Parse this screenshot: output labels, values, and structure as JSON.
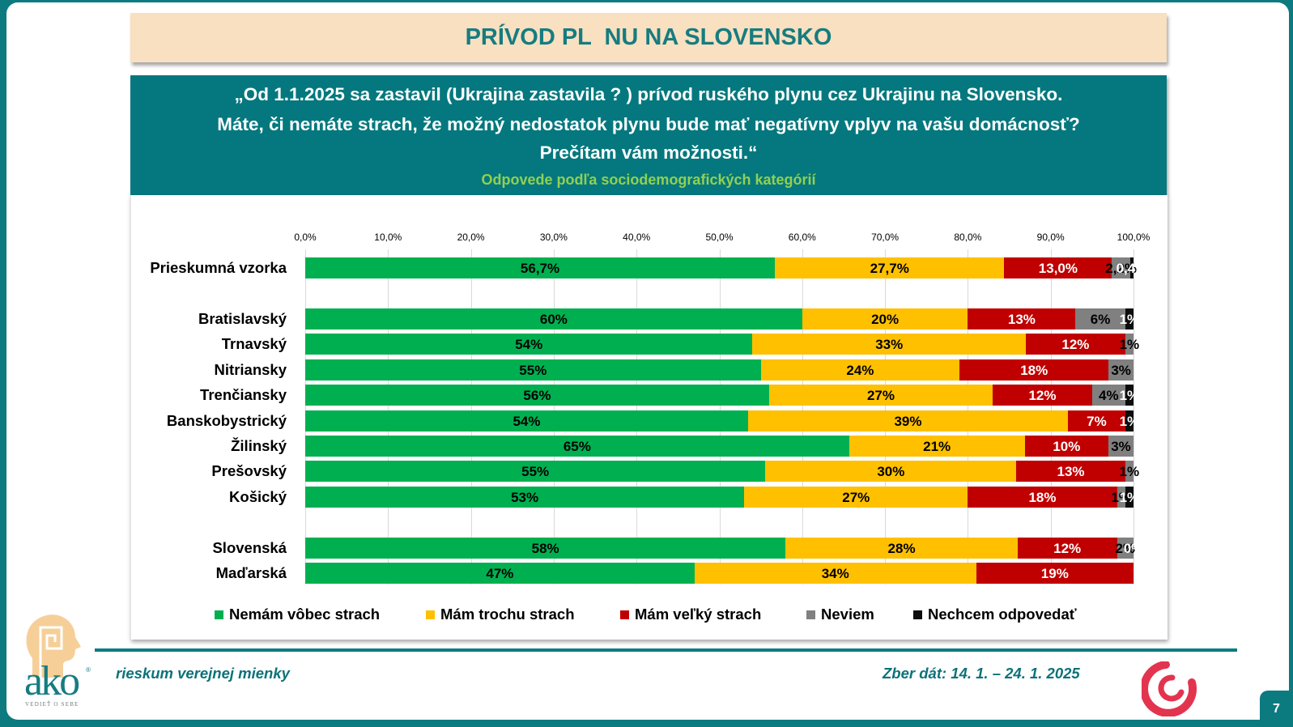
{
  "slide": {
    "title": "PRÍVOD PL  NU NA SLOVENSKO",
    "question_lines": [
      "„Od 1.1.2025 sa zastavil (Ukrajina zastavila ? ) prívod ruského plynu cez Ukrajinu na Slovensko.",
      "Máte, či nemáte strach, že možný nedostatok plynu bude mať negatívny vplyv na vašu domácnosť?",
      "Prečítam vám možnosti.“"
    ],
    "subtitle": "Odpovede podľa sociodemografických kategórií",
    "footer_left": "rieskum verejnej mienky",
    "footer_date": "Zber dát: 14. 1. – 24. 1. 2025",
    "page_number": "7",
    "logo": {
      "name": "ako",
      "registered_mark": "®",
      "tagline": "VEDIEŤ O SEBE"
    },
    "icons": {
      "left_logo": "ako-head-logo",
      "right_logo": "red-swirl-logo"
    }
  },
  "colors": {
    "frame_teal": "#0b7b80",
    "title_band": "#f8e0c0",
    "question_box": "#04787e",
    "subtitle_green": "#92d050"
  },
  "chart_data": {
    "type": "bar",
    "orientation": "horizontal",
    "stacked": "100%",
    "title": "",
    "xlabel": "",
    "ylabel": "",
    "xlim": [
      0,
      100
    ],
    "grid": true,
    "legend_position": "bottom",
    "x_ticks": [
      "0,0%",
      "10,0%",
      "20,0%",
      "30,0%",
      "40,0%",
      "50,0%",
      "60,0%",
      "70,0%",
      "80,0%",
      "90,0%",
      "100,0%"
    ],
    "categories": [
      "Prieskumná vzorka",
      "",
      "Bratislavský",
      "Trnavský",
      "Nitriansky",
      "Trenčiansky",
      "Banskobystrický",
      "Žilinský",
      "Prešovský",
      "Košický",
      "",
      "Slovenská",
      "Maďarská"
    ],
    "series": [
      {
        "name": "Nemám vôbec strach",
        "color": "#00b050",
        "label_color": "#000000",
        "values": [
          56.7,
          null,
          60,
          54,
          55,
          56,
          54,
          65,
          55,
          53,
          null,
          58,
          47
        ],
        "labels": [
          "56,7%",
          "",
          "60%",
          "54%",
          "55%",
          "56%",
          "54%",
          "65%",
          "55%",
          "53%",
          "",
          "58%",
          "47%"
        ]
      },
      {
        "name": "Mám trochu strach",
        "color": "#ffc000",
        "label_color": "#000000",
        "values": [
          27.7,
          null,
          20,
          33,
          24,
          27,
          39,
          21,
          30,
          27,
          null,
          28,
          34
        ],
        "labels": [
          "27,7%",
          "",
          "20%",
          "33%",
          "24%",
          "27%",
          "39%",
          "21%",
          "30%",
          "27%",
          "",
          "28%",
          "34%"
        ]
      },
      {
        "name": "Mám veľký strach",
        "color": "#c00000",
        "label_color": "#ffffff",
        "values": [
          13.0,
          null,
          13,
          12,
          18,
          12,
          7,
          10,
          13,
          18,
          null,
          12,
          19
        ],
        "labels": [
          "13,0%",
          "",
          "13%",
          "12%",
          "18%",
          "12%",
          "7%",
          "10%",
          "13%",
          "18%",
          "",
          "12%",
          "19%"
        ]
      },
      {
        "name": "Neviem",
        "color": "#808080",
        "label_color": "#000000",
        "values": [
          2.2,
          null,
          6,
          1,
          3,
          4,
          0,
          3,
          1,
          1,
          null,
          2,
          0
        ],
        "labels": [
          "2,2%",
          "",
          "6%",
          "1%",
          "3%",
          "4%",
          "",
          "3%",
          "1%",
          "1%",
          "",
          "2%",
          ""
        ]
      },
      {
        "name": "Nechcem odpovedať",
        "color": "#0d0d0d",
        "label_color": "#ffffff",
        "values": [
          0.4,
          null,
          1,
          0,
          0,
          1,
          1,
          0,
          0,
          1,
          null,
          0,
          0
        ],
        "labels": [
          "0,4%",
          "",
          "1%",
          "",
          "",
          "1%",
          "1%",
          "",
          "",
          "1%",
          "",
          "0%",
          ""
        ]
      }
    ]
  }
}
